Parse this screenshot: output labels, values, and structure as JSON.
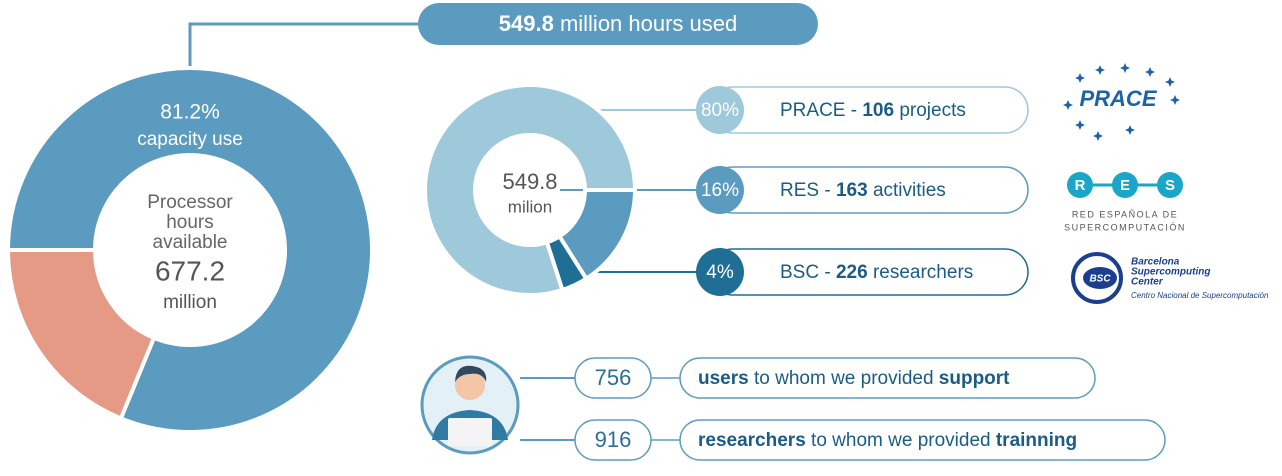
{
  "banner": {
    "number": 549.8,
    "text": "million hours used"
  },
  "chart_data": [
    {
      "type": "donut",
      "categories": [
        "capacity use",
        null
      ],
      "values": [
        81.2,
        18.8
      ],
      "value_labels": [
        "81.2%",
        null
      ],
      "colors": [
        "#5b9bc0",
        "#e49a85"
      ],
      "center_text": [
        "Processor",
        "hours",
        "available"
      ],
      "center_value": 677.2,
      "center_unit": "million"
    },
    {
      "type": "donut",
      "categories": [
        "PRACE",
        "RES",
        "BSC"
      ],
      "values": [
        80,
        16,
        4
      ],
      "value_labels": [
        "80%",
        "16%",
        "4%"
      ],
      "separator": "-",
      "counts": [
        106,
        163,
        226
      ],
      "count_units": [
        "projects",
        "activities",
        "researchers"
      ],
      "colors": [
        "#9ec9da",
        "#5c9bc0",
        "#1f6e96"
      ],
      "center_value": 549.8,
      "center_unit": "milion"
    }
  ],
  "logos": {
    "prace": "PRACE",
    "res_letters": [
      "R",
      "E",
      "S"
    ],
    "res_caption": [
      "RED ESPAÑOLA DE",
      "SUPERCOMPUTACIÓN"
    ],
    "bsc_badge": "BSC",
    "bsc_name": [
      "Barcelona",
      "Supercomputing",
      "Center"
    ],
    "bsc_caption": "Centro Nacional de Supercomputación"
  },
  "support": [
    {
      "number": 756,
      "lead": "users",
      "middle": " to whom we provided ",
      "tail": "support"
    },
    {
      "number": 916,
      "lead": "researchers",
      "middle": " to whom we provided ",
      "tail": "trainning"
    }
  ]
}
